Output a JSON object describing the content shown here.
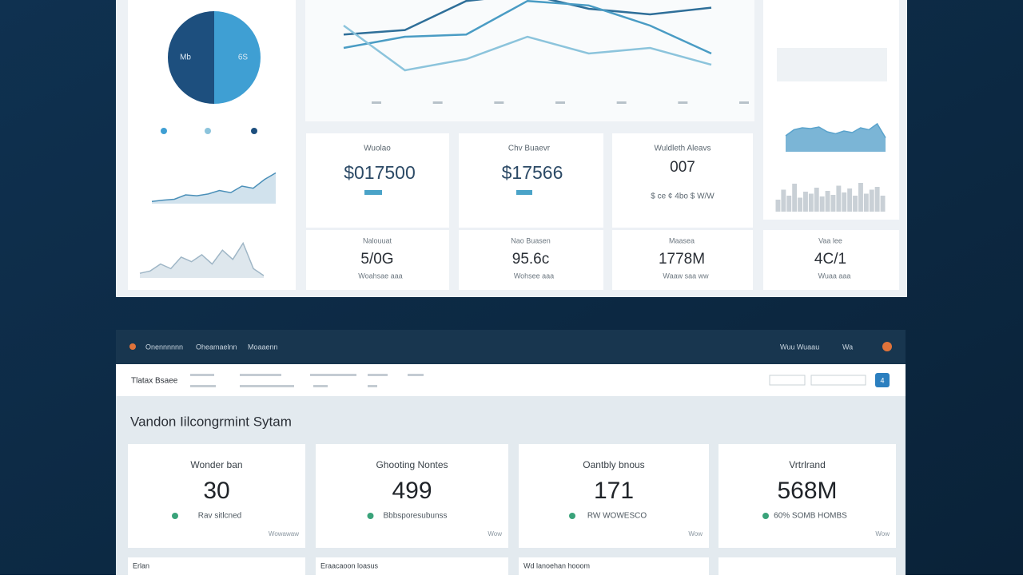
{
  "top_panel": {
    "kpi_row1": [
      {
        "title": "Wuolao",
        "value": "$017500"
      },
      {
        "title": "Chv Buaevr",
        "value": "$17566"
      },
      {
        "title": "Wuldleth Aleavs",
        "value": "007",
        "note": "$ ce ¢ 4bo $ W/W"
      }
    ],
    "kpi_row2": [
      {
        "title": "Nalouuat",
        "value": "5/0G",
        "note": "Woahsae aaa"
      },
      {
        "title": "Nao Buasen",
        "value": "95.6c",
        "note": "Wohsee aaa"
      },
      {
        "title": "Maasea",
        "value": "1778M",
        "note": "Waaw saa ww"
      },
      {
        "title": "Vaa lee",
        "value": "4C/1",
        "note": "Wuaa aaa"
      }
    ]
  },
  "bottom_panel": {
    "breadcrumb": [
      "Onennnnnn",
      "Oheamaelnn",
      "Moaaenn"
    ],
    "header_right": [
      "Wuu Wuaau",
      "Wa"
    ],
    "nav_title": "Tlatax Bsaee",
    "button": "4",
    "title": "Vandon Iilcongrmint Sytam",
    "cards": [
      {
        "title": "Wonder ban",
        "value": "30",
        "note": "Rav sitlcned",
        "link": "Wowawaw"
      },
      {
        "title": "Ghooting Nontes",
        "value": "499",
        "note": "Bbbsporesubunss",
        "link": "Wow"
      },
      {
        "title": "Oantbly bnous",
        "value": "171",
        "note": "RW WOWESCO",
        "link": "Wow"
      },
      {
        "title": "Vrtrlrand",
        "value": "568M",
        "note": "60% SOMB HOMBS",
        "link": "Wow"
      }
    ],
    "lower_cards": [
      "Erlan",
      "Eraacaoon loasus",
      "Wd lanoehan hooom"
    ]
  },
  "chart_data": [
    {
      "type": "pie",
      "categories": [
        "Mb",
        "6S"
      ],
      "values": [
        50,
        50
      ],
      "colors": [
        "#1d4f7e",
        "#3f9fd3"
      ]
    },
    {
      "type": "line",
      "categories": [
        null,
        null,
        null,
        null,
        null,
        null,
        null
      ],
      "ylim": [
        0,
        100
      ],
      "series": [
        {
          "color": "#2f6f99",
          "values": [
            62,
            66,
            92,
            98,
            85,
            80,
            86
          ]
        },
        {
          "color": "#4a9cc4",
          "values": [
            50,
            60,
            62,
            92,
            88,
            70,
            45
          ]
        },
        {
          "color": "#8cc4dc",
          "values": [
            70,
            30,
            40,
            60,
            45,
            50,
            35
          ]
        }
      ]
    },
    {
      "type": "area",
      "color": "#4a8fb8",
      "ylim": [
        0,
        100
      ],
      "values": [
        5,
        8,
        10,
        20,
        18,
        22,
        30,
        25,
        40,
        35,
        55,
        70
      ]
    },
    {
      "type": "area",
      "color": "#9fb6c6",
      "ylim": [
        0,
        100
      ],
      "values": [
        10,
        15,
        30,
        20,
        45,
        35,
        50,
        30,
        60,
        40,
        75,
        20,
        5
      ]
    },
    {
      "type": "area",
      "color": "#5aa3cc",
      "ylim": [
        0,
        100
      ],
      "values": [
        40,
        55,
        60,
        58,
        62,
        50,
        45,
        52,
        48,
        60,
        55,
        70,
        35
      ]
    },
    {
      "type": "bar",
      "color": "#c9d0d6",
      "ylim": [
        0,
        100
      ],
      "values": [
        30,
        55,
        40,
        70,
        35,
        50,
        45,
        60,
        38,
        52,
        42,
        65,
        48,
        58,
        40,
        72,
        45,
        55,
        62,
        40
      ]
    }
  ]
}
